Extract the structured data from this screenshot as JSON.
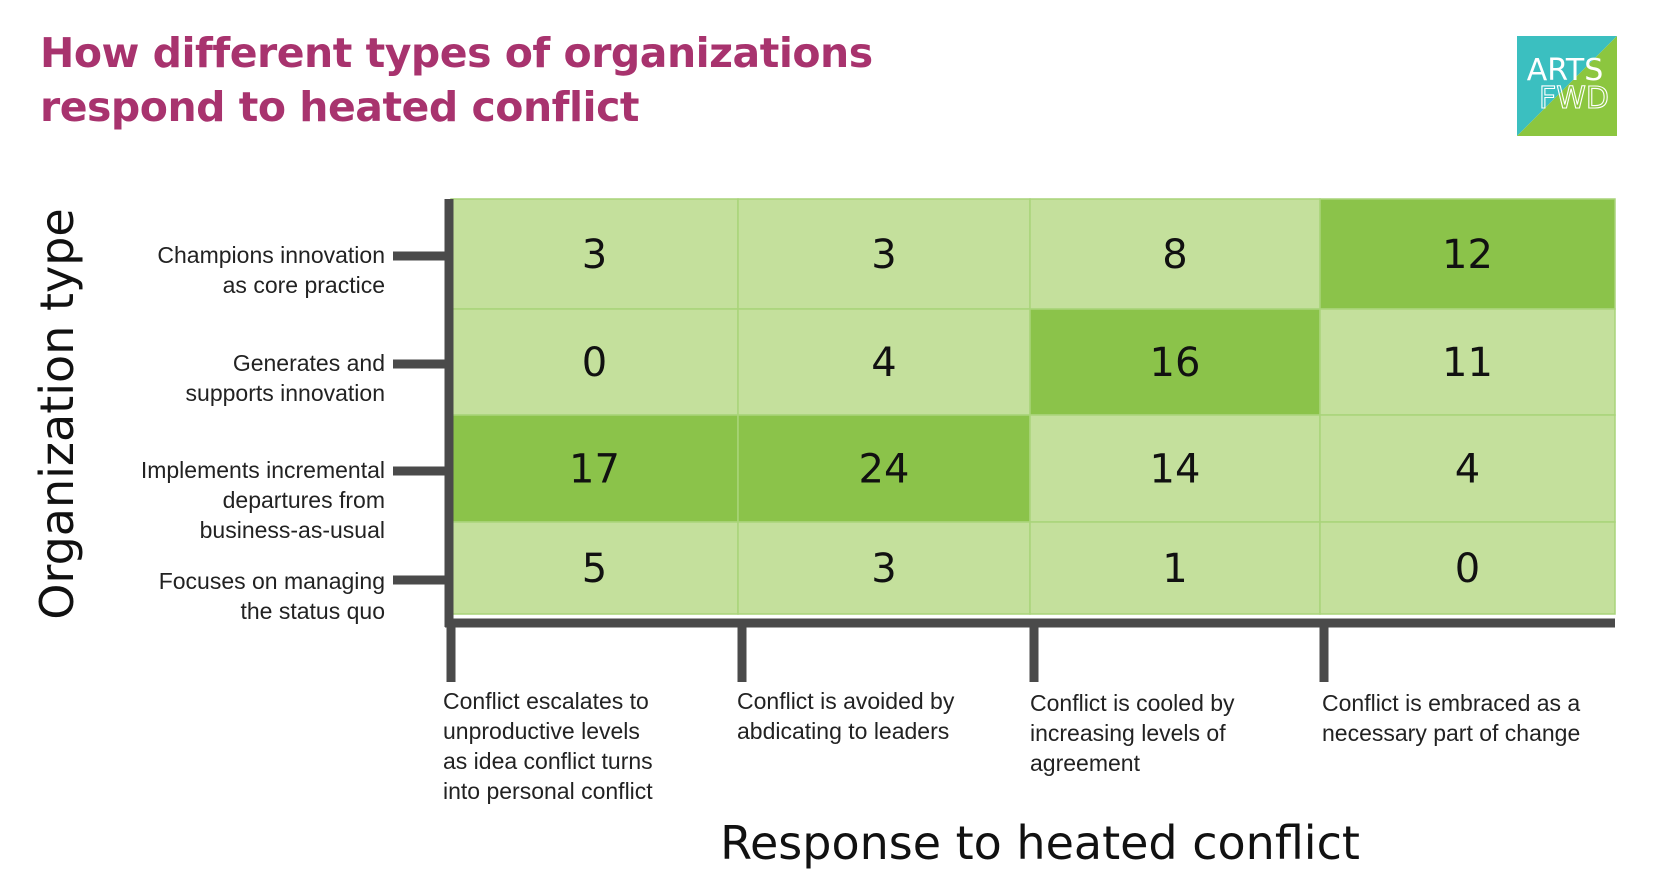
{
  "title": {
    "line1": "How different types of organizations",
    "line2": "respond to heated conflict"
  },
  "logo": {
    "line1": "ARTS",
    "line2": "FWD",
    "color_a": "#3bbfc0",
    "color_b": "#8cc63f"
  },
  "colors": {
    "title": "#a8336e",
    "cell_light": "#c4e09c",
    "cell_dark": "#8bc34a",
    "axis": "#4a4a4a"
  },
  "chart_data": {
    "type": "heatmap",
    "xlabel": "Response to heated conflict",
    "ylabel": "Organization type",
    "rows": [
      "Champions innovation\nas core practice",
      "Generates and\nsupports innovation",
      "Implements incremental\ndepartures from\nbusiness-as-usual",
      "Focuses on managing\nthe status quo"
    ],
    "columns": [
      "Conflict escalates to\nunproductive levels\nas idea conflict turns\ninto personal conflict",
      "Conflict is avoided by\nabdicating to leaders",
      "Conflict is cooled by\nincreasing levels of\nagreement",
      "Conflict is embraced as a\nnecessary part of change"
    ],
    "values": [
      [
        3,
        3,
        8,
        12
      ],
      [
        0,
        4,
        16,
        11
      ],
      [
        17,
        24,
        14,
        4
      ],
      [
        5,
        3,
        1,
        0
      ]
    ],
    "highlighted": [
      [
        false,
        false,
        false,
        true
      ],
      [
        false,
        false,
        true,
        false
      ],
      [
        true,
        true,
        false,
        false
      ],
      [
        false,
        false,
        false,
        false
      ]
    ]
  }
}
